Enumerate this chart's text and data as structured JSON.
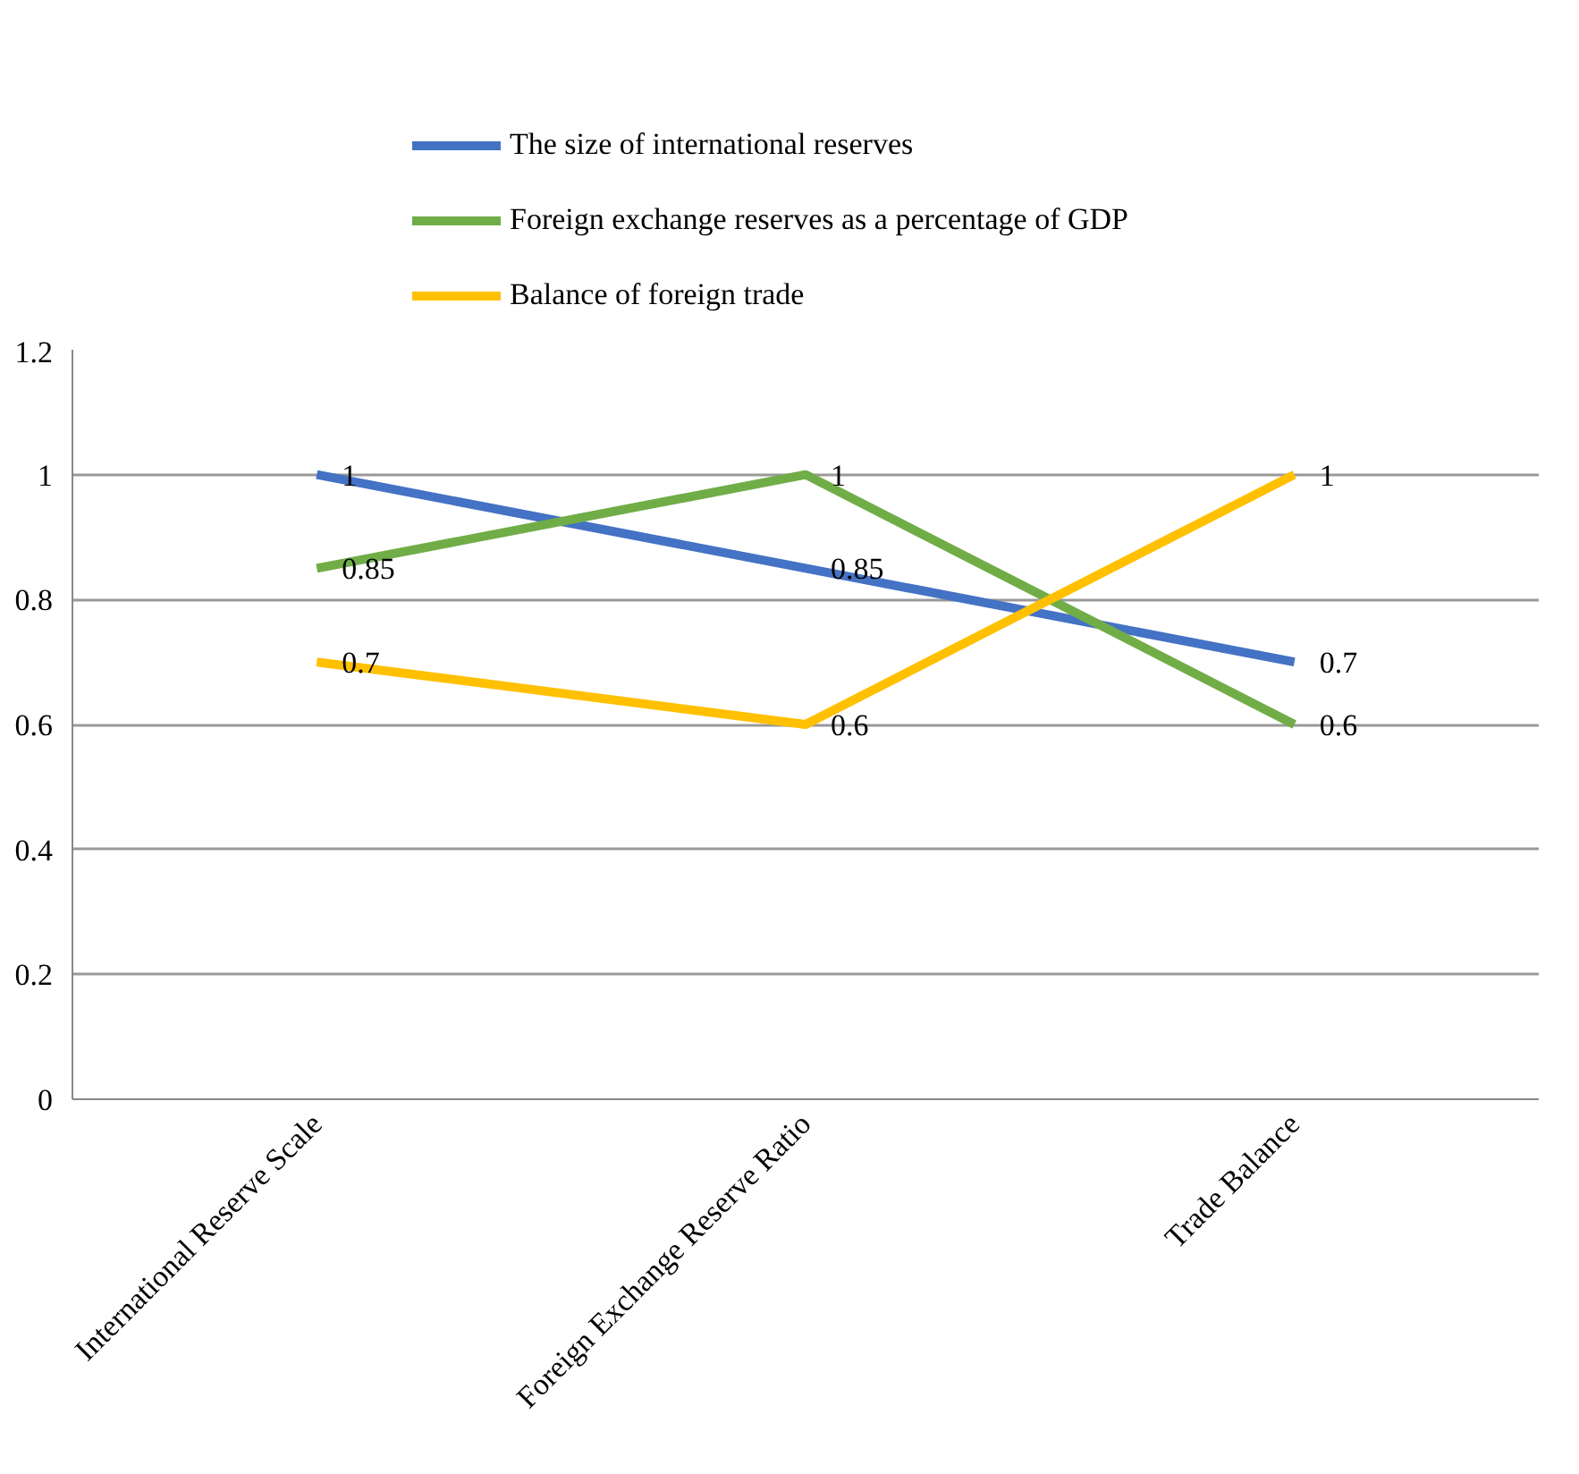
{
  "chart_data": {
    "type": "line",
    "categories": [
      "International Reserve Scale",
      "Foreign Exchange Reserve Ratio",
      "Trade Balance"
    ],
    "series": [
      {
        "name": "The size of international reserves",
        "color": "#4472c4",
        "values": [
          1,
          0.85,
          0.7
        ]
      },
      {
        "name": "Foreign exchange reserves as a percentage of GDP",
        "color": "#70ad47",
        "values": [
          0.85,
          1,
          0.6
        ]
      },
      {
        "name": "Balance of foreign trade",
        "color": "#ffc000",
        "values": [
          0.7,
          0.6,
          1
        ]
      }
    ],
    "ylim": [
      0,
      1.2
    ],
    "yticks": [
      0,
      0.2,
      0.4,
      0.6,
      0.8,
      1,
      1.2
    ],
    "grid": "y",
    "legend": "top",
    "data_labels": true,
    "marker": "none",
    "line_style": "solid"
  }
}
